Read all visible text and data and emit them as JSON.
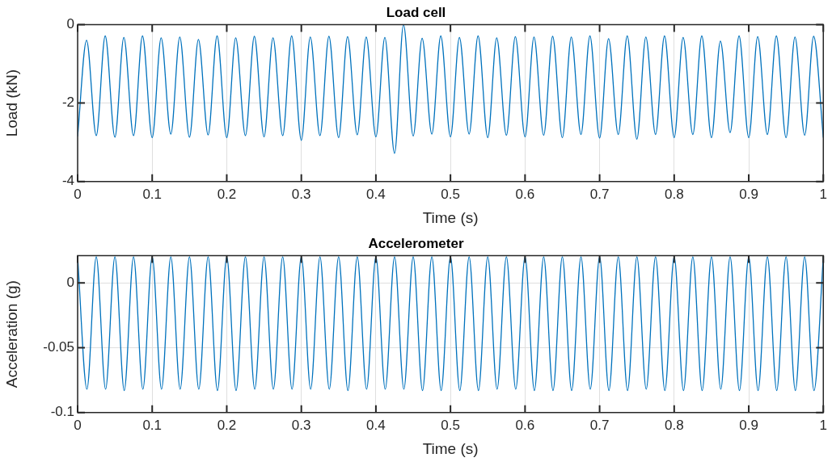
{
  "chart_data": [
    {
      "type": "line",
      "title": "Load cell",
      "xlabel": "Time (s)",
      "ylabel": "Load (kN)",
      "xlim": [
        0,
        1
      ],
      "xticks": [
        0,
        0.1,
        0.2,
        0.3,
        0.4,
        0.5,
        0.6,
        0.7,
        0.8,
        0.9,
        1
      ],
      "ylim": [
        -4,
        0
      ],
      "yticks": [
        -4,
        -2,
        0
      ],
      "grid": true,
      "legend": false,
      "marker": "none",
      "line_style": "solid",
      "series": [
        {
          "color": "#0072bd",
          "x": [
            0,
            0.012,
            0.025,
            0.037,
            0.05,
            0.062,
            0.075,
            0.087,
            0.1,
            0.112,
            0.125,
            0.137,
            0.15,
            0.162,
            0.175,
            0.187,
            0.2,
            0.212,
            0.225,
            0.237,
            0.25,
            0.262,
            0.275,
            0.287,
            0.3,
            0.312,
            0.325,
            0.337,
            0.35,
            0.362,
            0.375,
            0.387,
            0.4,
            0.412,
            0.425,
            0.437,
            0.45,
            0.462,
            0.475,
            0.487,
            0.5,
            0.512,
            0.525,
            0.537,
            0.55,
            0.562,
            0.575,
            0.587,
            0.6,
            0.612,
            0.625,
            0.637,
            0.65,
            0.662,
            0.675,
            0.687,
            0.7,
            0.712,
            0.725,
            0.737,
            0.75,
            0.762,
            0.775,
            0.787,
            0.8,
            0.812,
            0.825,
            0.837,
            0.85,
            0.862,
            0.875,
            0.887,
            0.9,
            0.912,
            0.925,
            0.937,
            0.95,
            0.962,
            0.975,
            0.987,
            1
          ],
          "values": [
            -2.85,
            -0.4,
            -2.83,
            -0.29,
            -2.87,
            -0.33,
            -2.83,
            -0.29,
            -2.88,
            -0.34,
            -2.79,
            -0.32,
            -2.87,
            -0.38,
            -2.81,
            -0.29,
            -2.88,
            -0.34,
            -2.83,
            -0.3,
            -2.86,
            -0.34,
            -2.83,
            -0.29,
            -2.95,
            -0.32,
            -2.83,
            -0.3,
            -2.88,
            -0.31,
            -2.81,
            -0.32,
            -2.86,
            -0.33,
            -3.28,
            0,
            -2.84,
            -0.35,
            -2.79,
            -0.29,
            -2.86,
            -0.33,
            -2.79,
            -0.29,
            -2.88,
            -0.34,
            -2.82,
            -0.31,
            -2.86,
            -0.32,
            -2.82,
            -0.3,
            -2.88,
            -0.32,
            -2.8,
            -0.29,
            -2.89,
            -0.36,
            -2.8,
            -0.29,
            -2.92,
            -0.32,
            -2.8,
            -0.29,
            -2.88,
            -0.33,
            -2.8,
            -0.29,
            -2.88,
            -0.42,
            -2.75,
            -0.29,
            -2.88,
            -0.31,
            -2.8,
            -0.29,
            -2.88,
            -0.32,
            -2.82,
            -0.3,
            -2.88
          ]
        }
      ]
    },
    {
      "type": "line",
      "title": "Accelerometer",
      "xlabel": "Time (s)",
      "ylabel": "Acceleration (g)",
      "xlim": [
        0,
        1
      ],
      "xticks": [
        0,
        0.1,
        0.2,
        0.3,
        0.4,
        0.5,
        0.6,
        0.7,
        0.8,
        0.9,
        1
      ],
      "ylim": [
        -0.1,
        0.021
      ],
      "yticks": [
        -0.1,
        -0.05,
        0
      ],
      "grid": true,
      "legend": false,
      "marker": "none",
      "line_style": "solid",
      "series": [
        {
          "color": "#0072bd",
          "x": [
            0,
            0.0125,
            0.025,
            0.0375,
            0.05,
            0.0625,
            0.075,
            0.0875,
            0.1,
            0.1125,
            0.125,
            0.1375,
            0.15,
            0.1625,
            0.175,
            0.1875,
            0.2,
            0.2125,
            0.225,
            0.2375,
            0.25,
            0.2625,
            0.275,
            0.2875,
            0.3,
            0.3125,
            0.325,
            0.3375,
            0.35,
            0.3625,
            0.375,
            0.3875,
            0.4,
            0.4125,
            0.425,
            0.4375,
            0.45,
            0.4625,
            0.475,
            0.4875,
            0.5,
            0.5125,
            0.525,
            0.5375,
            0.55,
            0.5625,
            0.575,
            0.5875,
            0.6,
            0.6125,
            0.625,
            0.6375,
            0.65,
            0.6625,
            0.675,
            0.6875,
            0.7,
            0.7125,
            0.725,
            0.7375,
            0.75,
            0.7625,
            0.775,
            0.7875,
            0.8,
            0.8125,
            0.825,
            0.8375,
            0.85,
            0.8625,
            0.875,
            0.8875,
            0.9,
            0.9125,
            0.925,
            0.9375,
            0.95,
            0.9625,
            0.975,
            0.9875,
            1
          ],
          "values": [
            0.02,
            -0.082,
            0.02,
            -0.082,
            0.02,
            -0.083,
            0.02,
            -0.082,
            0.02,
            -0.082,
            0.02,
            -0.082,
            0.02,
            -0.082,
            0.02,
            -0.083,
            0.02,
            -0.083,
            0.02,
            -0.082,
            0.02,
            -0.082,
            0.02,
            -0.082,
            0.02,
            -0.082,
            0.02,
            -0.082,
            0.02,
            -0.083,
            0.02,
            -0.082,
            0.02,
            -0.082,
            0.02,
            -0.082,
            0.02,
            -0.083,
            0.02,
            -0.083,
            0.02,
            -0.083,
            0.02,
            -0.083,
            0.02,
            -0.082,
            0.02,
            -0.082,
            0.02,
            -0.083,
            0.02,
            -0.083,
            0.02,
            -0.083,
            0.02,
            -0.082,
            0.02,
            -0.083,
            0.02,
            -0.083,
            0.02,
            -0.082,
            0.02,
            -0.083,
            0.02,
            -0.083,
            0.02,
            -0.083,
            0.02,
            -0.082,
            0.02,
            -0.083,
            0.02,
            -0.083,
            0.02,
            -0.083,
            0.02,
            -0.083,
            0.02,
            -0.083,
            0.02
          ]
        }
      ]
    }
  ]
}
